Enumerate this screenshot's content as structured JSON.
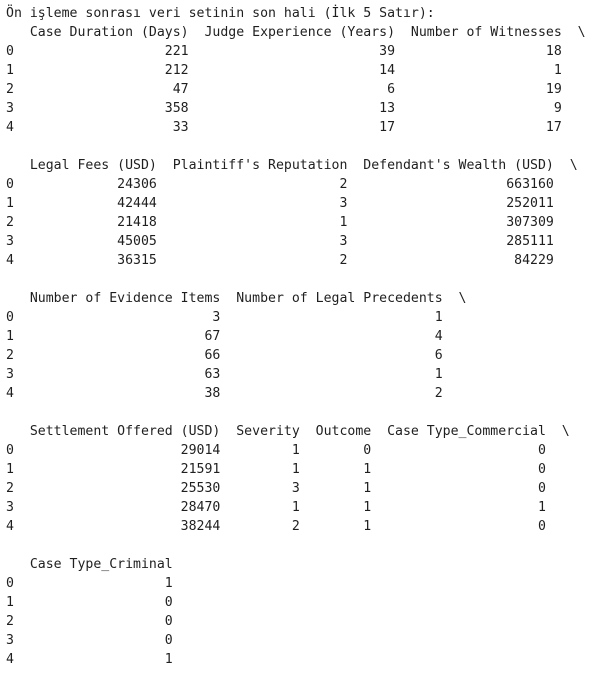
{
  "output": {
    "title": "Ön işleme sonrası veri setinin son hali (İlk 5 Satır):",
    "blocks": [
      {
        "header": "   Case Duration (Days)  Judge Experience (Years)  Number of Witnesses  \\",
        "rows": [
          "0                   221                        39                   18   ",
          "1                   212                        14                    1   ",
          "2                    47                         6                   19   ",
          "3                   358                        13                    9   ",
          "4                    33                        17                   17   "
        ]
      },
      {
        "header": "   Legal Fees (USD)  Plaintiff's Reputation  Defendant's Wealth (USD)  \\",
        "rows": [
          "0             24306                       2                    663160   ",
          "1             42444                       3                    252011   ",
          "2             21418                       1                    307309   ",
          "3             45005                       3                    285111   ",
          "4             36315                       2                     84229   "
        ]
      },
      {
        "header": "   Number of Evidence Items  Number of Legal Precedents  \\",
        "rows": [
          "0                         3                           1   ",
          "1                        67                           4   ",
          "2                        66                           6   ",
          "3                        63                           1   ",
          "4                        38                           2   "
        ]
      },
      {
        "header": "   Settlement Offered (USD)  Severity  Outcome  Case Type_Commercial  \\",
        "rows": [
          "0                     29014         1        0                     0   ",
          "1                     21591         1        1                     0   ",
          "2                     25530         3        1                     0   ",
          "3                     28470         1        1                     1   ",
          "4                     38244         2        1                     0   "
        ]
      },
      {
        "header": "   Case Type_Criminal  ",
        "rows": [
          "0                   1  ",
          "1                   0  ",
          "2                   0  ",
          "3                   0  ",
          "4                   1  "
        ]
      }
    ]
  }
}
